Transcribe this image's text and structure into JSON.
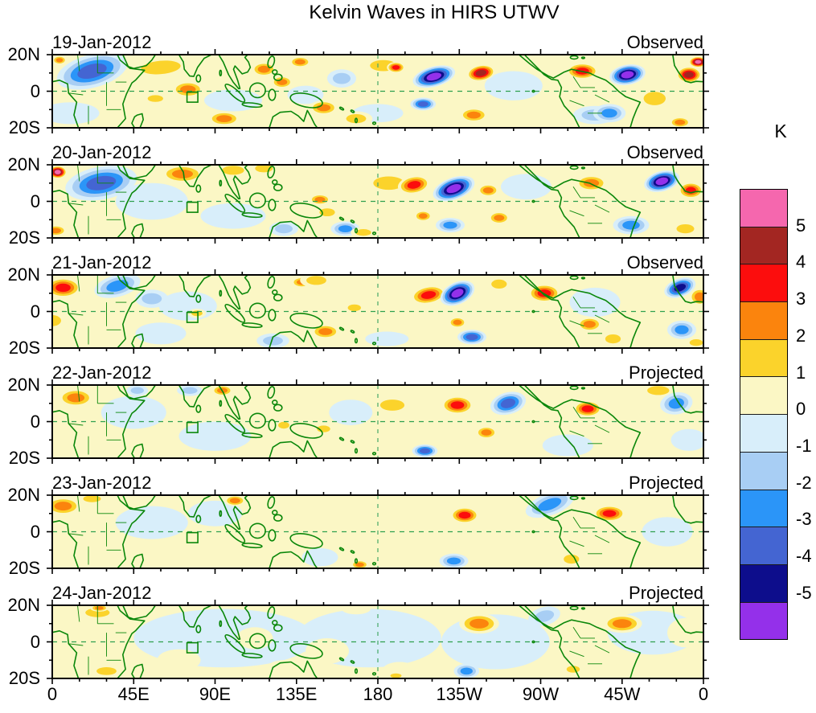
{
  "title": "Kelvin Waves in HIRS UTWV",
  "colorbar": {
    "unit": "K",
    "tick_labels": [
      "5",
      "4",
      "3",
      "2",
      "1",
      "0",
      "-1",
      "-2",
      "-3",
      "-4",
      "-5"
    ],
    "colors_top_to_bottom": [
      "#F567AE",
      "#A32622",
      "#FC0D0D",
      "#FB840D",
      "#FBD32B",
      "#FBF7C5",
      "#D8EEFA",
      "#A8CEF4",
      "#2B95F8",
      "#4465D2",
      "#0D0D8C",
      "#9430EA"
    ]
  },
  "axes": {
    "lon_tick_labels": [
      "0",
      "45E",
      "90E",
      "135E",
      "180",
      "135W",
      "90W",
      "45W",
      "0"
    ],
    "lat_tick_labels": [
      "20N",
      "0",
      "20S"
    ],
    "lon_range_deg": [
      0,
      360
    ],
    "lat_range_deg": [
      -20,
      20
    ]
  },
  "chart_data": {
    "type": "heatmap",
    "subtype": "filled-contour-anomaly-maps",
    "units": "K",
    "contour_levels": [
      -5,
      -4,
      -3,
      -2,
      -1,
      0,
      1,
      2,
      3,
      4,
      5
    ],
    "level_colors": {
      "6": "#F567AE",
      "5": "#A32622",
      "4": "#FC0D0D",
      "3": "#FB840D",
      "2": "#FBD32B",
      "1": "#FBF7C5",
      "-1": "#D8EEFA",
      "-2": "#A8CEF4",
      "-3": "#2B95F8",
      "-4": "#4465D2",
      "-5": "#0D0D8C",
      "-6": "#9430EA"
    },
    "map_colors": {
      "coastline": "#0A870A",
      "equator_dash": "#2FA04F",
      "dateline_dash": "#46A868",
      "region_box": "#0A870A"
    },
    "region_box": {
      "lon": [
        74.5,
        80.5
      ],
      "lat": [
        -6,
        -0.5
      ]
    },
    "anomaly_format": "[lon_deg_east_0_360, lat_deg, rx_deg, ry_deg, rotation_deg, peak_level(+warm/-cold)]",
    "panels": [
      {
        "date": "19-Jan-2012",
        "label": "Observed",
        "anomalies": [
          [
            10,
            -12,
            16,
            6,
            0,
            -1
          ],
          [
            100,
            -5,
            16,
            6,
            0,
            -1
          ],
          [
            140,
            -2,
            10,
            5,
            0,
            -1
          ],
          [
            180,
            -12,
            14,
            5,
            0,
            -1
          ],
          [
            255,
            3,
            16,
            8,
            0,
            -1
          ],
          [
            4,
            17,
            4,
            2.5,
            0,
            3
          ],
          [
            22,
            11,
            20,
            9,
            -15,
            -4
          ],
          [
            60,
            13,
            18,
            6,
            -5,
            2
          ],
          [
            75,
            1,
            9,
            4.5,
            0,
            3
          ],
          [
            57,
            -4,
            7,
            3,
            0,
            2
          ],
          [
            95,
            -15,
            9,
            4,
            0,
            3
          ],
          [
            117,
            12,
            7,
            4,
            0,
            3
          ],
          [
            127,
            5,
            6,
            3.5,
            0,
            3
          ],
          [
            137,
            16,
            6,
            3,
            0,
            3
          ],
          [
            160,
            7,
            8,
            5,
            0,
            -2
          ],
          [
            150,
            -9,
            8,
            4,
            0,
            3
          ],
          [
            168,
            -15,
            9,
            4,
            0,
            2
          ],
          [
            183,
            14,
            12,
            5,
            0,
            2
          ],
          [
            190,
            13,
            5,
            3,
            0,
            4
          ],
          [
            211,
            8,
            12,
            5.5,
            -15,
            -6
          ],
          [
            205,
            -7,
            7,
            3.5,
            0,
            -4
          ],
          [
            237,
            10,
            8,
            4.5,
            -10,
            5
          ],
          [
            233,
            -13,
            8,
            4,
            0,
            3
          ],
          [
            293,
            11,
            9,
            4.5,
            0,
            4
          ],
          [
            300,
            -13,
            12,
            5,
            0,
            -2
          ],
          [
            308,
            -12,
            9,
            5,
            0,
            -3
          ],
          [
            318,
            9,
            10,
            5.5,
            -10,
            -6
          ],
          [
            333,
            -4,
            10,
            6,
            0,
            2
          ],
          [
            352,
            9,
            7,
            4.5,
            0,
            5
          ],
          [
            357,
            16,
            5,
            3,
            0,
            6
          ],
          [
            347,
            -17,
            6,
            3,
            0,
            3
          ]
        ]
      },
      {
        "date": "20-Jan-2012",
        "label": "Observed",
        "anomalies": [
          [
            55,
            0,
            20,
            10,
            0,
            -1
          ],
          [
            100,
            -8,
            18,
            7,
            0,
            -1
          ],
          [
            262,
            8,
            14,
            7,
            0,
            -1
          ],
          [
            3,
            16,
            5,
            3.5,
            0,
            6
          ],
          [
            27,
            10,
            20,
            9,
            -10,
            -4
          ],
          [
            2,
            -16,
            6,
            3,
            0,
            3
          ],
          [
            72,
            15,
            12,
            5,
            0,
            3
          ],
          [
            100,
            17,
            10,
            4,
            0,
            2
          ],
          [
            117,
            18,
            8,
            3.5,
            0,
            2
          ],
          [
            128,
            -15,
            8,
            4,
            0,
            -2
          ],
          [
            148,
            1,
            6,
            3,
            0,
            3
          ],
          [
            152,
            -6,
            7,
            3.5,
            0,
            2
          ],
          [
            162,
            -15,
            8,
            4,
            0,
            -3
          ],
          [
            172,
            -17,
            7,
            3,
            0,
            2
          ],
          [
            186,
            10,
            14,
            6,
            0,
            2
          ],
          [
            200,
            9,
            9,
            5,
            -10,
            4
          ],
          [
            222,
            7,
            12,
            6,
            -20,
            -6
          ],
          [
            220,
            -13,
            8,
            4,
            0,
            -3
          ],
          [
            205,
            -8,
            5,
            3,
            0,
            3
          ],
          [
            241,
            6,
            6,
            3.5,
            0,
            3
          ],
          [
            247,
            -9,
            6,
            3.5,
            0,
            3
          ],
          [
            298,
            10,
            9,
            4.5,
            0,
            3
          ],
          [
            320,
            -13,
            10,
            5,
            0,
            -3
          ],
          [
            337,
            11,
            10,
            5.5,
            -15,
            -6
          ],
          [
            353,
            6,
            7,
            4.5,
            0,
            4
          ],
          [
            350,
            -15,
            8,
            4,
            0,
            2
          ]
        ]
      },
      {
        "date": "21-Jan-2012",
        "label": "Observed",
        "anomalies": [
          [
            75,
            3,
            16,
            8,
            0,
            -1
          ],
          [
            60,
            -12,
            14,
            6,
            0,
            -1
          ],
          [
            300,
            5,
            14,
            8,
            0,
            -1
          ],
          [
            185,
            -15,
            12,
            4,
            0,
            -1
          ],
          [
            6,
            13,
            10,
            5.5,
            0,
            4
          ],
          [
            0,
            -5,
            8,
            5,
            0,
            2
          ],
          [
            36,
            14,
            13,
            6,
            -15,
            -3
          ],
          [
            55,
            7,
            9,
            5,
            0,
            -2
          ],
          [
            80,
            -1,
            5,
            2.5,
            0,
            2
          ],
          [
            110,
            18,
            10,
            4,
            0,
            1
          ],
          [
            138,
            16,
            6,
            3,
            0,
            3
          ],
          [
            146,
            17,
            9,
            4,
            0,
            2
          ],
          [
            122,
            -16,
            9,
            4,
            0,
            -2
          ],
          [
            151,
            -11,
            8,
            4,
            0,
            3
          ],
          [
            167,
            2,
            6,
            3,
            0,
            2
          ],
          [
            208,
            9,
            10,
            5,
            -10,
            4
          ],
          [
            224,
            10,
            10,
            6,
            -25,
            -6
          ],
          [
            232,
            -14,
            8,
            4,
            0,
            -4
          ],
          [
            224,
            -6,
            5,
            3,
            0,
            3
          ],
          [
            247,
            15,
            7,
            4,
            0,
            2
          ],
          [
            272,
            10,
            9,
            5,
            0,
            4
          ],
          [
            297,
            -7,
            7,
            4,
            0,
            3
          ],
          [
            310,
            -15,
            7,
            4,
            0,
            2
          ],
          [
            347,
            13,
            9,
            5,
            -20,
            -5
          ],
          [
            348,
            -10,
            8,
            5,
            0,
            -3
          ],
          [
            358,
            8,
            6,
            5,
            0,
            3
          ],
          [
            356,
            -17,
            6,
            3,
            0,
            2
          ]
        ]
      },
      {
        "date": "22-Jan-2012",
        "label": "Projected",
        "anomalies": [
          [
            45,
            5,
            18,
            9,
            0,
            -1
          ],
          [
            90,
            -8,
            20,
            8,
            0,
            -1
          ],
          [
            165,
            5,
            12,
            7,
            0,
            -1
          ],
          [
            285,
            -13,
            14,
            6,
            0,
            -1
          ],
          [
            352,
            -10,
            10,
            6,
            0,
            -1
          ],
          [
            13,
            13,
            10,
            5,
            0,
            3
          ],
          [
            47,
            17,
            6,
            3,
            0,
            -2
          ],
          [
            76,
            17,
            7,
            3,
            0,
            -2
          ],
          [
            94,
            17,
            6,
            3,
            0,
            3
          ],
          [
            128,
            -2,
            5,
            3,
            0,
            2
          ],
          [
            150,
            -4,
            6,
            3,
            0,
            2
          ],
          [
            188,
            9,
            11,
            5,
            0,
            2
          ],
          [
            206,
            -16,
            7,
            3.5,
            0,
            -4
          ],
          [
            224,
            9,
            9,
            5,
            0,
            4
          ],
          [
            240,
            -6,
            6,
            3.5,
            0,
            3
          ],
          [
            252,
            10,
            10,
            6,
            -15,
            -4
          ],
          [
            296,
            7,
            8,
            4.5,
            0,
            4
          ],
          [
            335,
            17,
            10,
            4,
            0,
            2
          ],
          [
            345,
            10,
            9,
            6,
            -10,
            -3
          ]
        ]
      },
      {
        "date": "23-Jan-2012",
        "label": "Projected",
        "anomalies": [
          [
            55,
            5,
            20,
            9,
            0,
            -1
          ],
          [
            90,
            10,
            15,
            7,
            0,
            -1
          ],
          [
            148,
            -14,
            10,
            5,
            0,
            -1
          ],
          [
            340,
            0,
            14,
            8,
            0,
            -1
          ],
          [
            6,
            14,
            10,
            5,
            0,
            3
          ],
          [
            22,
            18,
            8,
            3,
            0,
            2
          ],
          [
            20,
            -16,
            9,
            4,
            0,
            1
          ],
          [
            101,
            17,
            6,
            3,
            0,
            3
          ],
          [
            115,
            -4,
            8,
            4,
            0,
            1
          ],
          [
            140,
            17,
            8,
            4,
            0,
            1
          ],
          [
            248,
            -4,
            10,
            6,
            0,
            1
          ],
          [
            170,
            -18,
            5,
            2.5,
            0,
            3
          ],
          [
            228,
            9,
            8,
            4.5,
            0,
            4
          ],
          [
            275,
            15,
            14,
            6,
            -20,
            -3
          ],
          [
            222,
            -16,
            8,
            4,
            0,
            -3
          ],
          [
            287,
            -15,
            7,
            4,
            0,
            2
          ],
          [
            308,
            10,
            9,
            4.5,
            0,
            4
          ],
          [
            352,
            15,
            7,
            4,
            0,
            1
          ]
        ]
      },
      {
        "date": "24-Jan-2012",
        "label": "Projected",
        "anomalies": [
          [
            95,
            2,
            50,
            16,
            0,
            -1
          ],
          [
            175,
            2,
            40,
            16,
            0,
            -1
          ],
          [
            245,
            0,
            30,
            15,
            0,
            -1
          ],
          [
            332,
            5,
            25,
            12,
            0,
            -1
          ],
          [
            18,
            3,
            20,
            14,
            0,
            1
          ],
          [
            25,
            16,
            11,
            4,
            0,
            2
          ],
          [
            26,
            18.5,
            5,
            2,
            0,
            3
          ],
          [
            30,
            -16,
            9,
            3.5,
            0,
            2
          ],
          [
            70,
            -10,
            12,
            6,
            0,
            1
          ],
          [
            112,
            2,
            10,
            6,
            0,
            1
          ],
          [
            128,
            -13,
            8,
            3,
            0,
            1
          ],
          [
            152,
            -5,
            12,
            7,
            0,
            1
          ],
          [
            168,
            18,
            8,
            3,
            0,
            1
          ],
          [
            192,
            -15,
            9,
            4,
            0,
            1
          ],
          [
            190,
            -18.5,
            5,
            2,
            0,
            2
          ],
          [
            229,
            -16,
            7,
            4,
            0,
            -3
          ],
          [
            236,
            10,
            11,
            5.5,
            0,
            3
          ],
          [
            272,
            14,
            9,
            5,
            -15,
            -2
          ],
          [
            300,
            -8,
            14,
            8,
            0,
            1
          ],
          [
            288,
            -15,
            6,
            3,
            0,
            2
          ],
          [
            315,
            10,
            11,
            5,
            0,
            3
          ],
          [
            350,
            5,
            10,
            8,
            0,
            1
          ]
        ]
      }
    ]
  }
}
